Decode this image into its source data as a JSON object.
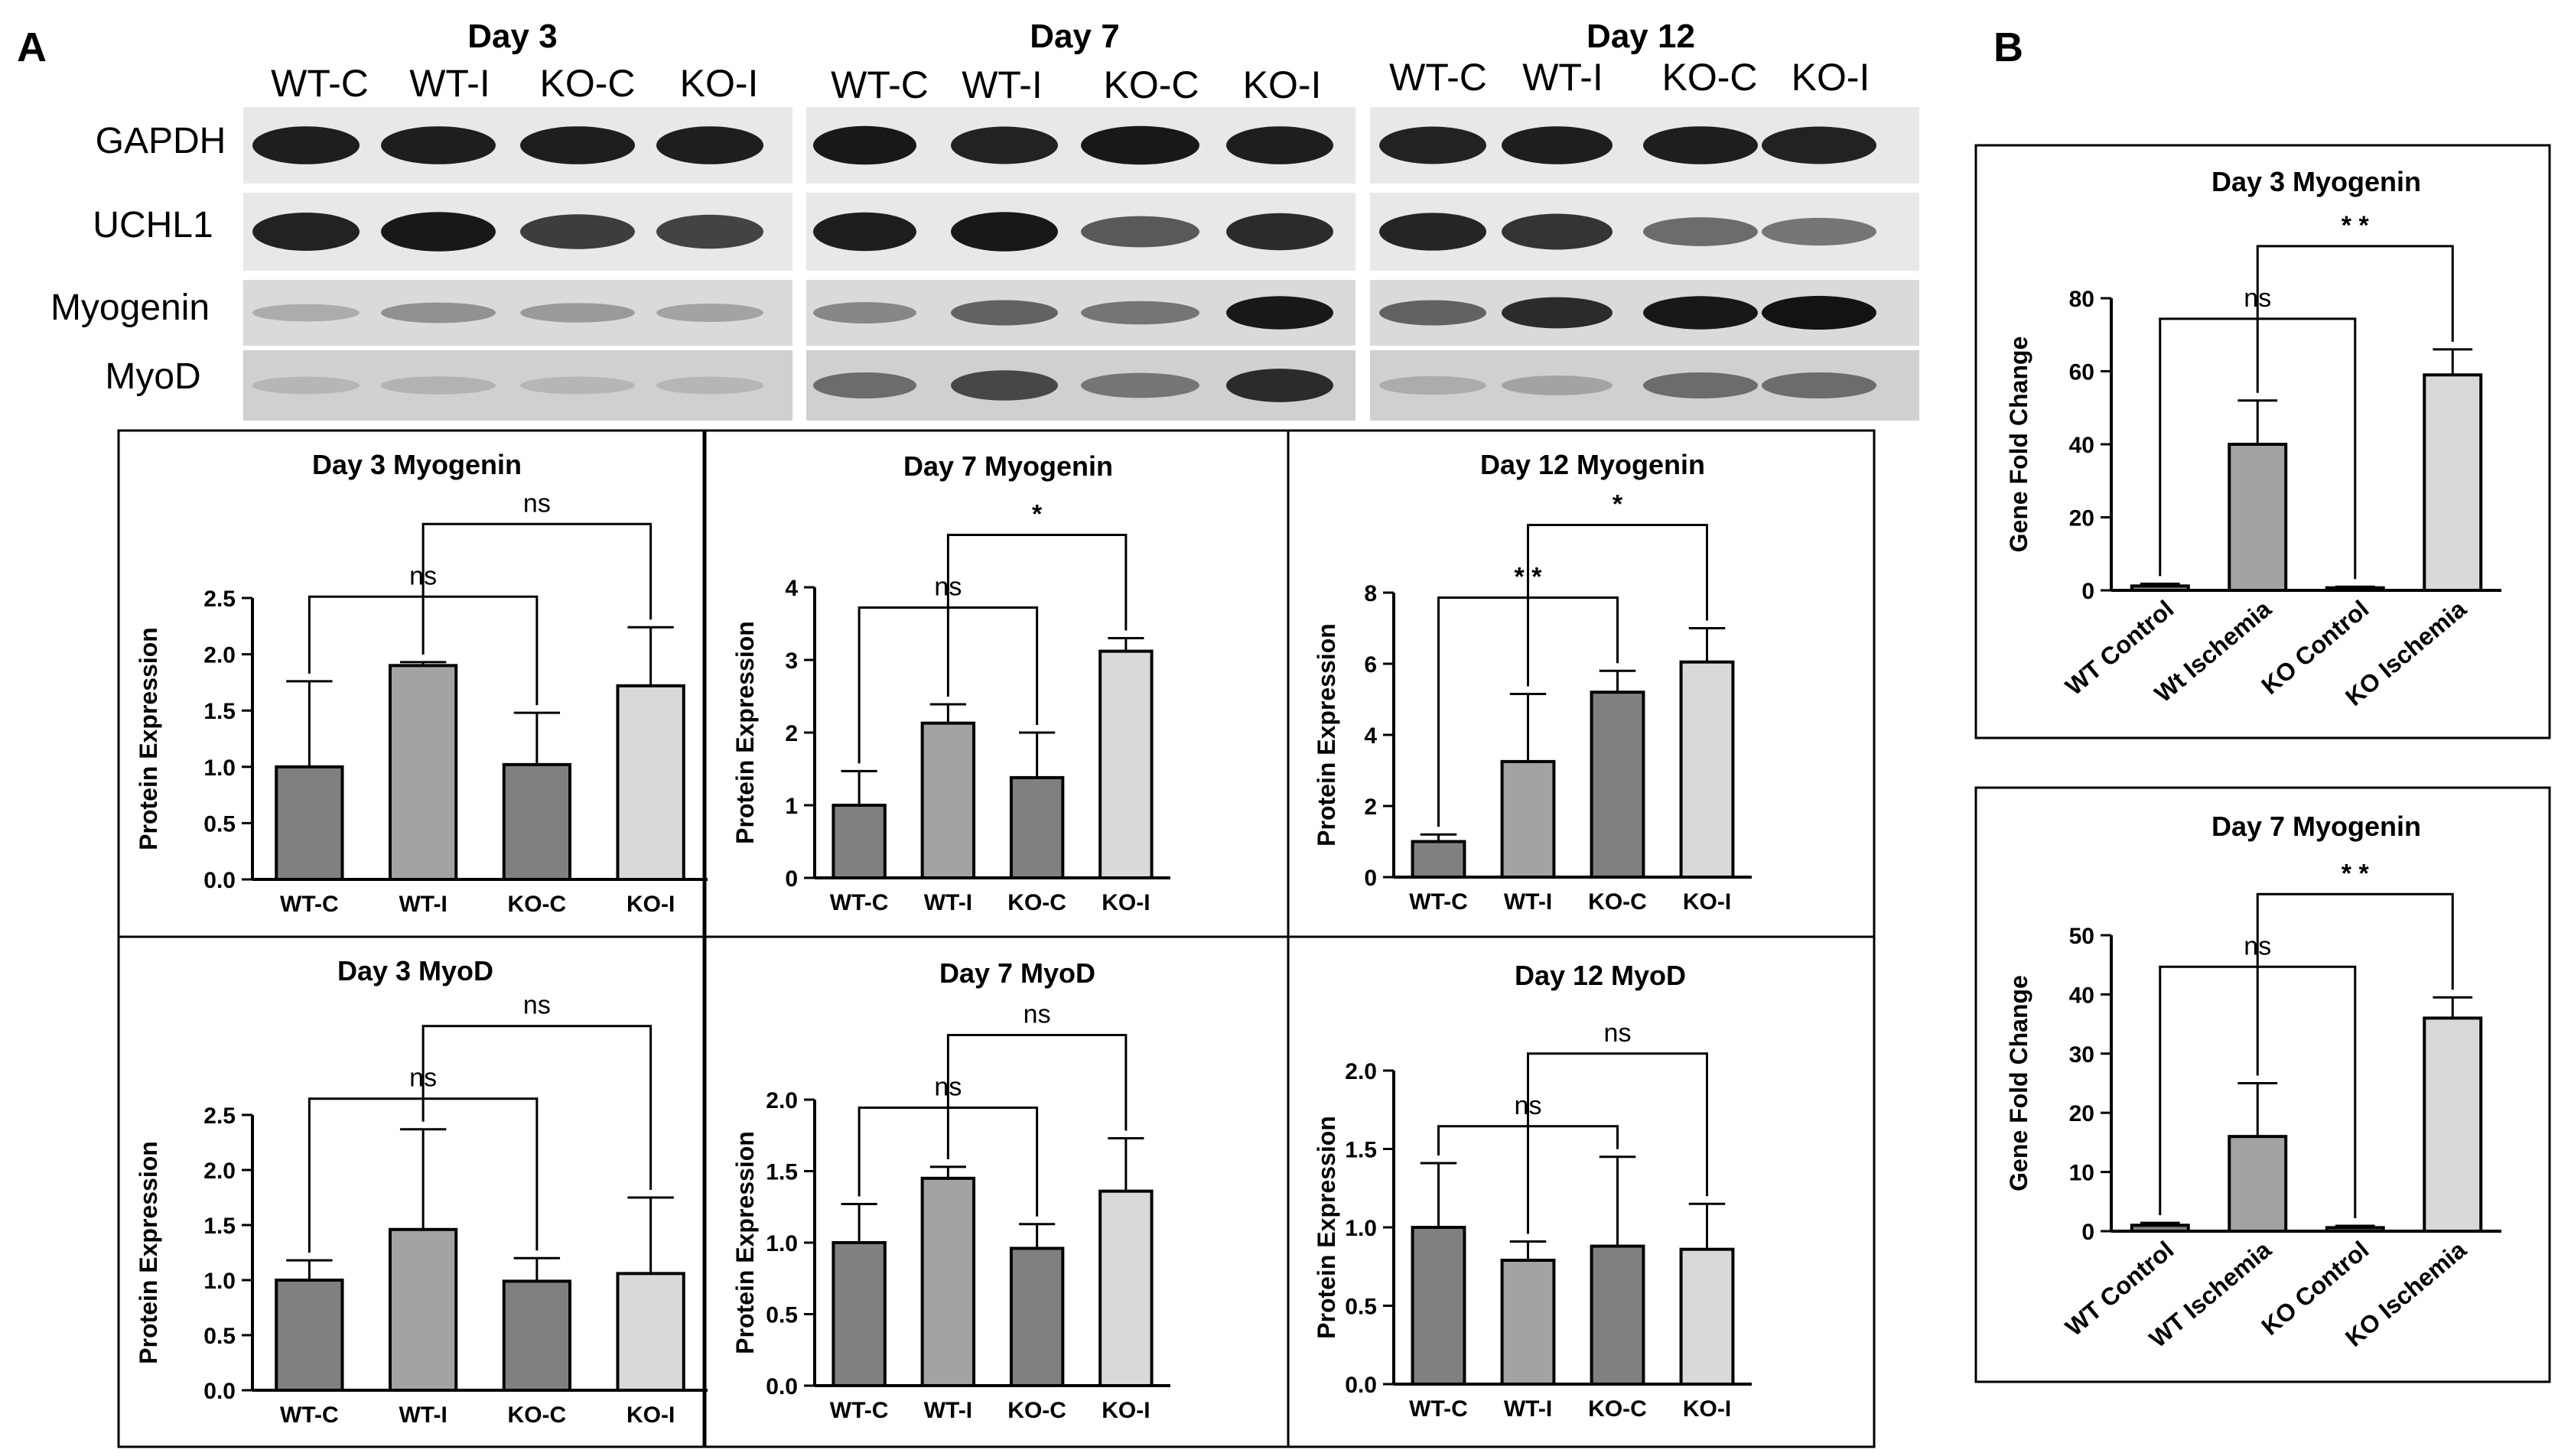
{
  "panel_labels": {
    "a": "A",
    "b": "B"
  },
  "blot": {
    "days": [
      "Day 3",
      "Day 7",
      "Day 12"
    ],
    "lanes": [
      "WT-C",
      "WT-I",
      "KO-C",
      "KO-I"
    ],
    "proteins": [
      "GAPDH",
      "UCHL1",
      "Myogenin",
      "MyoD"
    ],
    "intensity": {
      "GAPDH": [
        [
          0.92,
          0.92,
          0.92,
          0.92
        ],
        [
          0.95,
          0.9,
          0.95,
          0.92
        ],
        [
          0.9,
          0.92,
          0.92,
          0.9
        ]
      ],
      "UCHL1": [
        [
          0.9,
          0.95,
          0.75,
          0.72
        ],
        [
          0.92,
          0.95,
          0.6,
          0.85
        ],
        [
          0.88,
          0.8,
          0.5,
          0.45
        ]
      ],
      "Myogenin": [
        [
          0.15,
          0.3,
          0.25,
          0.2
        ],
        [
          0.35,
          0.55,
          0.45,
          0.95
        ],
        [
          0.55,
          0.85,
          0.95,
          0.98
        ]
      ],
      "MyoD": [
        [
          0.1,
          0.12,
          0.1,
          0.1
        ],
        [
          0.5,
          0.7,
          0.45,
          0.85
        ],
        [
          0.15,
          0.2,
          0.5,
          0.5
        ]
      ]
    }
  },
  "chart_data": [
    {
      "type": "bar",
      "title": "Day 3 Myogenin",
      "ylabel": "Protein Expression",
      "categories": [
        "WT-C",
        "WT-I",
        "KO-C",
        "KO-I"
      ],
      "values": [
        1.0,
        1.9,
        1.02,
        1.72
      ],
      "errors": [
        0.76,
        0.03,
        0.46,
        0.52
      ],
      "ylim": [
        0,
        2.5
      ],
      "yticks": [
        "0.0",
        "0.5",
        "1.0",
        "1.5",
        "2.0",
        "2.5"
      ],
      "colors": [
        "#808080",
        "#a3a3a3",
        "#808080",
        "#d9d9d9"
      ],
      "sig": [
        {
          "from": "WT-C",
          "to": "KO-C",
          "label": "ns"
        },
        {
          "from": "WT-I",
          "to": "KO-I",
          "label": "ns"
        }
      ]
    },
    {
      "type": "bar",
      "title": "Day 7 Myogenin",
      "ylabel": "Protein Expression",
      "categories": [
        "WT-C",
        "WT-I",
        "KO-C",
        "KO-I"
      ],
      "values": [
        1.0,
        2.13,
        1.38,
        3.12
      ],
      "errors": [
        0.47,
        0.26,
        0.62,
        0.18
      ],
      "ylim": [
        0,
        4
      ],
      "yticks": [
        "0",
        "1",
        "2",
        "3",
        "4"
      ],
      "colors": [
        "#808080",
        "#a3a3a3",
        "#808080",
        "#d9d9d9"
      ],
      "sig": [
        {
          "from": "WT-C",
          "to": "KO-C",
          "label": "ns"
        },
        {
          "from": "WT-I",
          "to": "KO-I",
          "label": "*"
        }
      ]
    },
    {
      "type": "bar",
      "title": "Day 12 Myogenin",
      "ylabel": "Protein Expression",
      "categories": [
        "WT-C",
        "WT-I",
        "KO-C",
        "KO-I"
      ],
      "values": [
        1.0,
        3.25,
        5.2,
        6.05
      ],
      "errors": [
        0.2,
        1.9,
        0.6,
        0.95
      ],
      "ylim": [
        0,
        8
      ],
      "yticks": [
        "0",
        "2",
        "4",
        "6",
        "8"
      ],
      "colors": [
        "#808080",
        "#a3a3a3",
        "#808080",
        "#d9d9d9"
      ],
      "sig": [
        {
          "from": "WT-C",
          "to": "KO-C",
          "label": "* *"
        },
        {
          "from": "WT-I",
          "to": "KO-I",
          "label": "*"
        }
      ]
    },
    {
      "type": "bar",
      "title": "Day 3 MyoD",
      "ylabel": "Protein Expression",
      "categories": [
        "WT-C",
        "WT-I",
        "KO-C",
        "KO-I"
      ],
      "values": [
        1.0,
        1.46,
        0.99,
        1.06
      ],
      "errors": [
        0.18,
        0.91,
        0.21,
        0.69
      ],
      "ylim": [
        0,
        2.5
      ],
      "yticks": [
        "0.0",
        "0.5",
        "1.0",
        "1.5",
        "2.0",
        "2.5"
      ],
      "colors": [
        "#808080",
        "#a3a3a3",
        "#808080",
        "#d9d9d9"
      ],
      "sig": [
        {
          "from": "WT-C",
          "to": "KO-C",
          "label": "ns"
        },
        {
          "from": "WT-I",
          "to": "KO-I",
          "label": "ns"
        }
      ]
    },
    {
      "type": "bar",
      "title": "Day 7 MyoD",
      "ylabel": "Protein Expression",
      "categories": [
        "WT-C",
        "WT-I",
        "KO-C",
        "KO-I"
      ],
      "values": [
        1.0,
        1.45,
        0.96,
        1.36
      ],
      "errors": [
        0.27,
        0.08,
        0.17,
        0.37
      ],
      "ylim": [
        0,
        2.0
      ],
      "yticks": [
        "0.0",
        "0.5",
        "1.0",
        "1.5",
        "2.0"
      ],
      "colors": [
        "#808080",
        "#a3a3a3",
        "#808080",
        "#d9d9d9"
      ],
      "sig": [
        {
          "from": "WT-C",
          "to": "KO-C",
          "label": "ns"
        },
        {
          "from": "WT-I",
          "to": "KO-I",
          "label": "ns"
        }
      ]
    },
    {
      "type": "bar",
      "title": "Day 12 MyoD",
      "ylabel": "Protein Expression",
      "categories": [
        "WT-C",
        "WT-I",
        "KO-C",
        "KO-I"
      ],
      "values": [
        1.0,
        0.79,
        0.88,
        0.86
      ],
      "errors": [
        0.41,
        0.12,
        0.57,
        0.29
      ],
      "ylim": [
        0,
        2.0
      ],
      "yticks": [
        "0.0",
        "0.5",
        "1.0",
        "1.5",
        "2.0"
      ],
      "colors": [
        "#808080",
        "#a3a3a3",
        "#808080",
        "#d9d9d9"
      ],
      "sig": [
        {
          "from": "WT-C",
          "to": "KO-C",
          "label": "ns"
        },
        {
          "from": "WT-I",
          "to": "KO-I",
          "label": "ns"
        }
      ]
    },
    {
      "type": "bar",
      "title": "Day 3 Myogenin",
      "ylabel": "Gene Fold Change",
      "categories": [
        "WT Control",
        "Wt Ischemia",
        "KO Control",
        "KO Ischemia"
      ],
      "values": [
        1.2,
        40,
        0.7,
        59
      ],
      "errors": [
        0.6,
        12,
        0.3,
        7
      ],
      "ylim": [
        0,
        80
      ],
      "yticks": [
        "0",
        "20",
        "40",
        "60",
        "80"
      ],
      "colors": [
        "#808080",
        "#a3a3a3",
        "#808080",
        "#d9d9d9"
      ],
      "sig": [
        {
          "from": "WT Control",
          "to": "KO Control",
          "label": "ns"
        },
        {
          "from": "Wt Ischemia",
          "to": "KO Ischemia",
          "label": "* *"
        }
      ]
    },
    {
      "type": "bar",
      "title": "Day 7 Myogenin",
      "ylabel": "Gene Fold Change",
      "categories": [
        "WT Control",
        "WT Ischemia",
        "KO Control",
        "KO Ischemia"
      ],
      "values": [
        1.0,
        16,
        0.6,
        36
      ],
      "errors": [
        0.4,
        9,
        0.3,
        3.5
      ],
      "ylim": [
        0,
        50
      ],
      "yticks": [
        "0",
        "10",
        "20",
        "30",
        "40",
        "50"
      ],
      "colors": [
        "#808080",
        "#a3a3a3",
        "#808080",
        "#d9d9d9"
      ],
      "sig": [
        {
          "from": "WT Control",
          "to": "KO Control",
          "label": "ns"
        },
        {
          "from": "WT Ischemia",
          "to": "KO Ischemia",
          "label": "* *"
        }
      ]
    }
  ]
}
